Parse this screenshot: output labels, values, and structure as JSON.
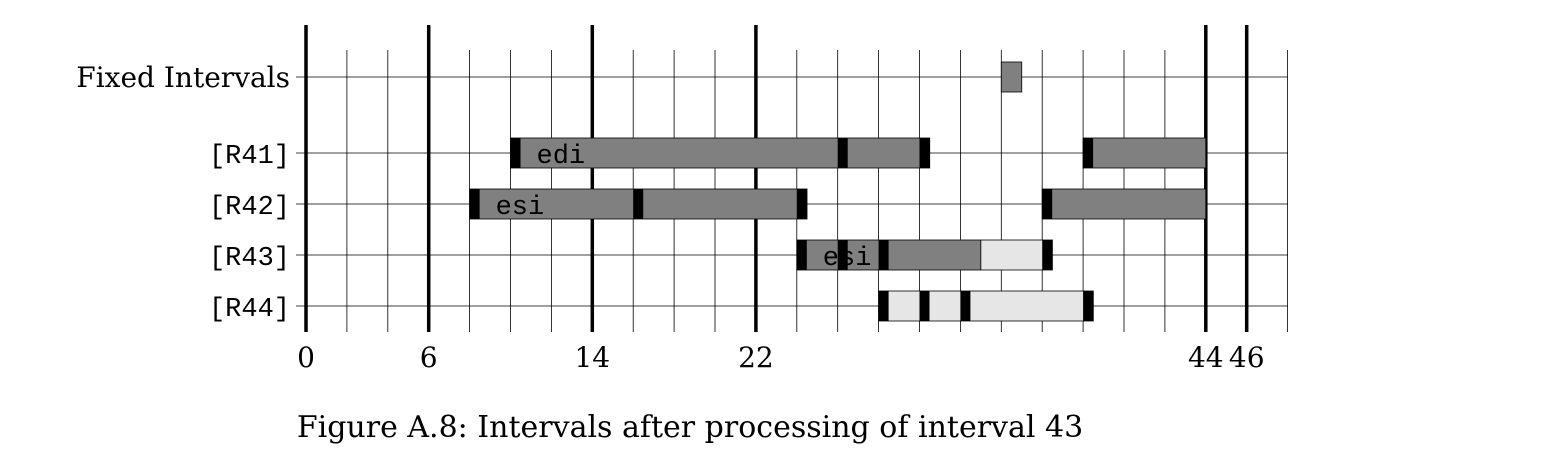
{
  "figure": {
    "caption": "Figure A.8: Intervals after processing of interval 43"
  },
  "rows": [
    {
      "label": "Fixed Intervals",
      "label_style": "serif"
    },
    {
      "label": "[R41]",
      "label_style": "mono"
    },
    {
      "label": "[R42]",
      "label_style": "mono"
    },
    {
      "label": "[R43]",
      "label_style": "mono"
    },
    {
      "label": "[R44]",
      "label_style": "mono"
    }
  ],
  "axis": {
    "min": 0,
    "max": 48,
    "minor_tick_step": 2,
    "major_ticks": [
      0,
      6,
      14,
      22,
      44,
      46
    ],
    "tick_labels": [
      "0",
      "6",
      "14",
      "22",
      "44",
      "46"
    ]
  },
  "colors": {
    "assigned": "#808080",
    "spilled": "#e6e6e6",
    "use_position": "#000000",
    "grid": "#000000"
  },
  "intervals": [
    {
      "row": 0,
      "segments": [
        {
          "start": 34.0,
          "end": 35.0,
          "kind": "assigned"
        }
      ],
      "uses": [],
      "register": ""
    },
    {
      "row": 1,
      "segments": [
        {
          "start": 10.0,
          "end": 30.5,
          "kind": "assigned"
        },
        {
          "start": 38.0,
          "end": 44.0,
          "kind": "assigned"
        }
      ],
      "uses": [
        10,
        26,
        30,
        38
      ],
      "register": "edi"
    },
    {
      "row": 2,
      "segments": [
        {
          "start": 8.0,
          "end": 24.5,
          "kind": "assigned"
        },
        {
          "start": 36.0,
          "end": 44.0,
          "kind": "assigned"
        }
      ],
      "uses": [
        8,
        16,
        24,
        36
      ],
      "register": "esi"
    },
    {
      "row": 3,
      "segments": [
        {
          "start": 24.0,
          "end": 33.0,
          "kind": "assigned"
        },
        {
          "start": 33.0,
          "end": 36.5,
          "kind": "spilled"
        }
      ],
      "uses": [
        24,
        26,
        28,
        36
      ],
      "register": "esi"
    },
    {
      "row": 4,
      "segments": [
        {
          "start": 28.0,
          "end": 38.5,
          "kind": "spilled"
        }
      ],
      "uses": [
        28,
        30,
        32,
        38
      ],
      "register": ""
    }
  ]
}
